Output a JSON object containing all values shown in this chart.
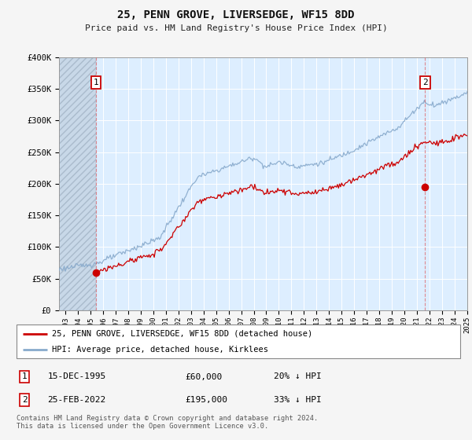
{
  "title": "25, PENN GROVE, LIVERSEDGE, WF15 8DD",
  "subtitle": "Price paid vs. HM Land Registry's House Price Index (HPI)",
  "bg_color": "#ddeeff",
  "grid_color": "#ffffff",
  "red_line_color": "#cc0000",
  "blue_line_color": "#88aacc",
  "sale1_x": 1995.958,
  "sale1_price": 60000,
  "sale2_x": 2022.146,
  "sale2_price": 195000,
  "xmin": 1993.0,
  "xmax": 2025.5,
  "ymin": 0,
  "ymax": 400000,
  "yticks": [
    0,
    50000,
    100000,
    150000,
    200000,
    250000,
    300000,
    350000,
    400000
  ],
  "ytick_labels": [
    "£0",
    "£50K",
    "£100K",
    "£150K",
    "£200K",
    "£250K",
    "£300K",
    "£350K",
    "£400K"
  ],
  "xtick_years": [
    1993,
    1994,
    1995,
    1996,
    1997,
    1998,
    1999,
    2000,
    2001,
    2002,
    2003,
    2004,
    2005,
    2006,
    2007,
    2008,
    2009,
    2010,
    2011,
    2012,
    2013,
    2014,
    2015,
    2016,
    2017,
    2018,
    2019,
    2020,
    2021,
    2022,
    2023,
    2024,
    2025
  ],
  "legend1_label": "25, PENN GROVE, LIVERSEDGE, WF15 8DD (detached house)",
  "legend2_label": "HPI: Average price, detached house, Kirklees",
  "table_row1": [
    "1",
    "15-DEC-1995",
    "£60,000",
    "20% ↓ HPI"
  ],
  "table_row2": [
    "2",
    "25-FEB-2022",
    "£195,000",
    "33% ↓ HPI"
  ],
  "footnote": "Contains HM Land Registry data © Crown copyright and database right 2024.\nThis data is licensed under the Open Government Licence v3.0.",
  "marker_color": "#cc0000",
  "marker_size": 7
}
